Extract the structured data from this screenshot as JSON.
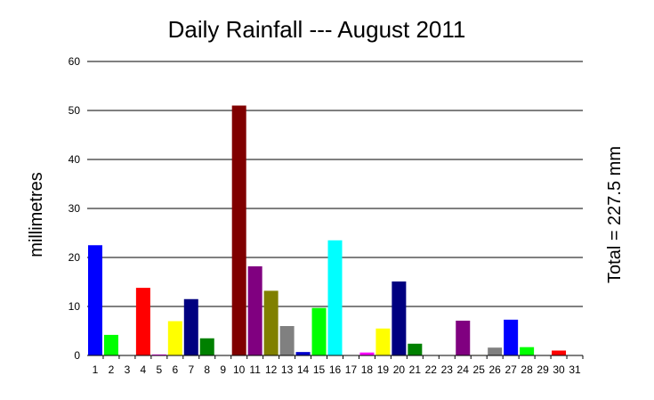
{
  "chart_data": {
    "type": "bar",
    "title": "Daily Rainfall --- August 2011",
    "ylabel": "millimetres",
    "xlabel": "",
    "annotation": "Total = 227.5 mm",
    "ylim": [
      0,
      60
    ],
    "yticks": [
      0,
      10,
      20,
      30,
      40,
      50,
      60
    ],
    "grid": true,
    "categories": [
      "1",
      "2",
      "3",
      "4",
      "5",
      "6",
      "7",
      "8",
      "9",
      "10",
      "11",
      "12",
      "13",
      "14",
      "15",
      "16",
      "17",
      "18",
      "19",
      "20",
      "21",
      "22",
      "23",
      "24",
      "25",
      "26",
      "27",
      "28",
      "29",
      "30",
      "31"
    ],
    "values": [
      22.5,
      4.2,
      0,
      13.8,
      0.2,
      7.0,
      11.5,
      3.5,
      0,
      51.0,
      18.2,
      13.2,
      6.0,
      0.7,
      9.7,
      23.5,
      0,
      0.6,
      5.5,
      15.1,
      2.4,
      0,
      0,
      7.1,
      0.1,
      1.6,
      7.3,
      1.7,
      0,
      1.0,
      0
    ],
    "colors": [
      "#0000ff",
      "#00ff00",
      "#00ff00",
      "#ff0000",
      "#ff00ff",
      "#ffff00",
      "#000080",
      "#008000",
      "#ff0000",
      "#800000",
      "#800080",
      "#808000",
      "#808080",
      "#0000cc",
      "#00ff00",
      "#00ffff",
      "#ffff00",
      "#ff00ff",
      "#ffff00",
      "#000080",
      "#008000",
      "#ff0000",
      "#800000",
      "#800080",
      "#808000",
      "#808080",
      "#0000ff",
      "#00ff00",
      "#ffff00",
      "#ff0000",
      "#ff00ff"
    ]
  }
}
